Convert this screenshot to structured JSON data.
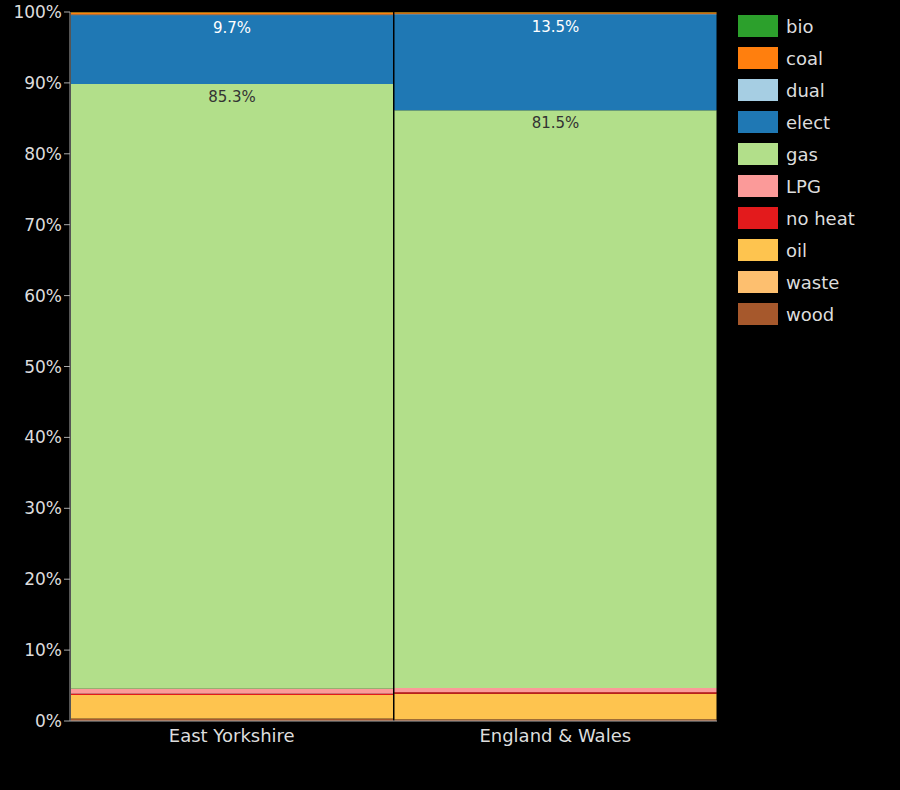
{
  "chart_data": {
    "type": "bar",
    "stacked": true,
    "categories": [
      "East Yorkshire",
      "England & Wales"
    ],
    "ylim": [
      0,
      100
    ],
    "yticks": [
      {
        "value": 0,
        "label": "0%"
      },
      {
        "value": 10,
        "label": "10%"
      },
      {
        "value": 20,
        "label": "20%"
      },
      {
        "value": 30,
        "label": "30%"
      },
      {
        "value": 40,
        "label": "40%"
      },
      {
        "value": 50,
        "label": "50%"
      },
      {
        "value": 60,
        "label": "60%"
      },
      {
        "value": 70,
        "label": "70%"
      },
      {
        "value": 80,
        "label": "80%"
      },
      {
        "value": 90,
        "label": "90%"
      },
      {
        "value": 100,
        "label": "100%"
      }
    ],
    "grid": false,
    "legend": "right",
    "series": [
      {
        "name": "bio",
        "color": "#2ca02c",
        "values": [
          0.05,
          0.05
        ]
      },
      {
        "name": "coal",
        "color": "#ff7f0e",
        "values": [
          0.3,
          0.2
        ]
      },
      {
        "name": "dual",
        "color": "#a6cee3",
        "values": [
          0.1,
          0.1
        ]
      },
      {
        "name": "elect",
        "color": "#1f78b4",
        "values": [
          9.7,
          13.5
        ],
        "value_labels": [
          "9.7%",
          "13.5%"
        ]
      },
      {
        "name": "gas",
        "color": "#b2df8a",
        "values": [
          85.3,
          81.5
        ],
        "value_labels": [
          "85.3%",
          "81.5%"
        ]
      },
      {
        "name": "LPG",
        "color": "#fb9a99",
        "values": [
          0.7,
          0.6
        ]
      },
      {
        "name": "no heat",
        "color": "#e31a1c",
        "values": [
          0.2,
          0.2
        ]
      },
      {
        "name": "oil",
        "color": "#fec44f",
        "values": [
          3.3,
          3.6
        ]
      },
      {
        "name": "waste",
        "color": "#fdbf6f",
        "values": [
          0.05,
          0.05
        ]
      },
      {
        "name": "wood",
        "color": "#a6582c",
        "values": [
          0.3,
          0.2
        ]
      }
    ]
  }
}
